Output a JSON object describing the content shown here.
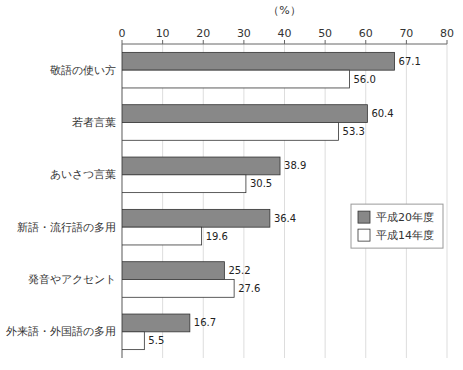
{
  "chart_data": {
    "type": "bar",
    "orientation": "horizontal",
    "x_label": "（%）",
    "categories": [
      "敬語の使い方",
      "若者言葉",
      "あいさつ言葉",
      "新語・流行語の多用",
      "発音やアクセント",
      "外来語・外国語の多用"
    ],
    "series": [
      {
        "name": "平成20年度",
        "color": "#888888",
        "values": [
          67.1,
          60.4,
          38.9,
          36.4,
          25.2,
          16.7
        ]
      },
      {
        "name": "平成14年度",
        "color": "#ffffff",
        "values": [
          56.0,
          53.3,
          30.5,
          19.6,
          27.6,
          5.5
        ],
        "value_labels": [
          "56.0",
          "53.3",
          "30.5",
          "19.6",
          "27.6",
          "5.5"
        ]
      }
    ],
    "xlim": [
      0,
      80
    ],
    "xticks": [
      0,
      10,
      20,
      30,
      40,
      50,
      60,
      70,
      80
    ],
    "grid": true,
    "data_labels": true,
    "legend": "right"
  }
}
